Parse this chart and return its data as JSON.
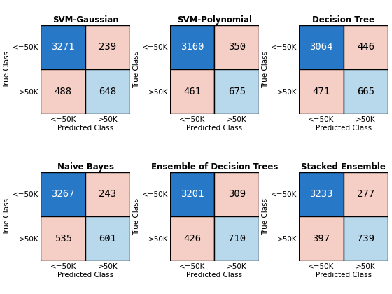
{
  "panels": [
    {
      "title": "SVM-Gaussian",
      "matrix": [
        [
          3271,
          239
        ],
        [
          488,
          648
        ]
      ]
    },
    {
      "title": "SVM-Polynomial",
      "matrix": [
        [
          3160,
          350
        ],
        [
          461,
          675
        ]
      ]
    },
    {
      "title": "Decision Tree",
      "matrix": [
        [
          3064,
          446
        ],
        [
          471,
          665
        ]
      ]
    },
    {
      "title": "Naive Bayes",
      "matrix": [
        [
          3267,
          243
        ],
        [
          535,
          601
        ]
      ]
    },
    {
      "title": "Ensemble of Decision Trees",
      "matrix": [
        [
          3201,
          309
        ],
        [
          426,
          710
        ]
      ]
    },
    {
      "title": "Stacked Ensemble",
      "matrix": [
        [
          3233,
          277
        ],
        [
          397,
          739
        ]
      ]
    }
  ],
  "row_labels": [
    "<=50K",
    ">50K"
  ],
  "col_labels": [
    "<=50K",
    ">50K"
  ],
  "xlabel": "Predicted Class",
  "ylabel": "True Class",
  "color_TN": "#2878c8",
  "color_FP": "#f5cfc5",
  "color_FN": "#f5cfc5",
  "color_TP": "#b8d8ec",
  "text_color_dark": "#ffffff",
  "text_color_light": "#000000",
  "title_fontsize": 8.5,
  "label_fontsize": 7.5,
  "tick_fontsize": 7.5,
  "value_fontsize": 10
}
